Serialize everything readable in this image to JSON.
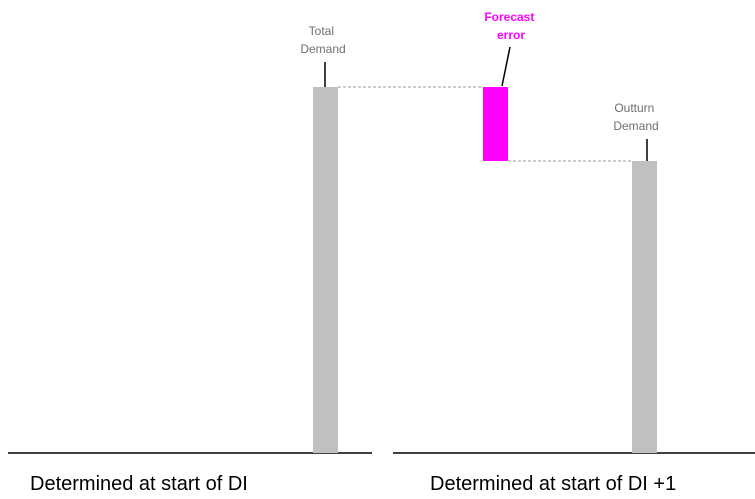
{
  "labels": {
    "total_demand": [
      "Total",
      "Demand"
    ],
    "forecast_error": [
      "Forecast",
      "error"
    ],
    "outturn_demand": [
      "Outturn",
      "Demand"
    ]
  },
  "captions": {
    "left": "Determined at start of DI",
    "right": "Determined at start of DI +1"
  },
  "colors": {
    "demand_bar": "#c0c0c0",
    "error_bar": "#ff00ff",
    "axis_line": "#000000",
    "dashed_line": "#9a9a9a"
  }
}
